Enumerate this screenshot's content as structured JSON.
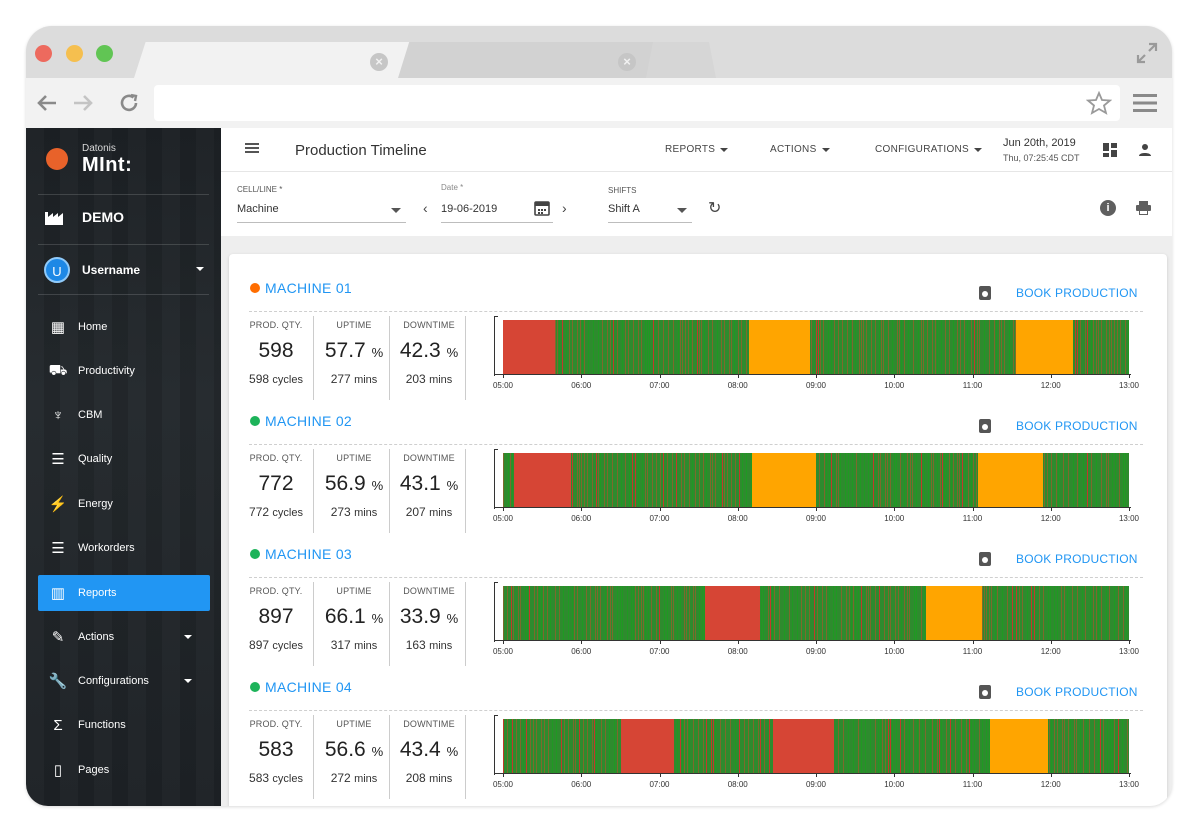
{
  "browser": {
    "traffic_colors": [
      "#ed6a5e",
      "#f5bf4f",
      "#61c554"
    ],
    "tab_close_glyph": "×"
  },
  "sidebar": {
    "logo_sub": "Datonis",
    "logo_main": "MInt:",
    "demo_label": "DEMO",
    "user": {
      "initial": "U",
      "name": "Username"
    },
    "items": [
      {
        "label": "Home",
        "icon": "grid-icon",
        "glyph": "▦"
      },
      {
        "label": "Productivity",
        "icon": "cart-icon",
        "glyph": "⛟"
      },
      {
        "label": "CBM",
        "icon": "stethoscope-icon",
        "glyph": "♆"
      },
      {
        "label": "Quality",
        "icon": "checklist-icon",
        "glyph": "☰"
      },
      {
        "label": "Energy",
        "icon": "bolt-icon",
        "glyph": "⚡"
      },
      {
        "label": "Workorders",
        "icon": "list-icon",
        "glyph": "☰"
      },
      {
        "label": "Reports",
        "icon": "bar-chart-icon",
        "glyph": "▥",
        "active": true
      },
      {
        "label": "Actions",
        "icon": "pencil-icon",
        "glyph": "✎",
        "has_submenu": true
      },
      {
        "label": "Configurations",
        "icon": "wrench-icon",
        "glyph": "🔧",
        "has_submenu": true
      },
      {
        "label": "Functions",
        "icon": "sigma-icon",
        "glyph": "Σ"
      },
      {
        "label": "Pages",
        "icon": "page-icon",
        "glyph": "▯"
      }
    ]
  },
  "header": {
    "title": "Production Timeline",
    "menus": [
      "REPORTS",
      "ACTIONS",
      "CONFIGURATIONS"
    ],
    "date_main": "Jun 20th, 2019",
    "date_sub": "Thu, 07:25:45 CDT"
  },
  "filters": {
    "cell_label": "CELL/LINE *",
    "cell_value": "Machine",
    "date_label": "Date *",
    "date_value": "19-06-2019",
    "shifts_label": "SHIFTS",
    "shifts_value": "Shift A",
    "prev_glyph": "‹",
    "next_glyph": "›",
    "refresh_glyph": "↻",
    "info_glyph": "i",
    "print_glyph": "⎙"
  },
  "colors": {
    "accent": "#2196f3",
    "running": "#2e8b2e",
    "stopped": "#d64535",
    "idle": "#ffa500",
    "status_orange": "#ff6d00",
    "status_green": "#1db35a"
  },
  "labels": {
    "prod_qty": "PROD. QTY.",
    "uptime": "UPTIME",
    "downtime": "DOWNTIME",
    "book": "BOOK PRODUCTION",
    "percent": "%",
    "cycles": "cycles",
    "mins": "mins"
  },
  "timeline_ticks": [
    "05:00",
    "06:00",
    "07:00",
    "08:00",
    "09:00",
    "10:00",
    "11:00",
    "12:00",
    "13:00"
  ],
  "machines": [
    {
      "name": "MACHINE 01",
      "status_color": "#ff6d00",
      "prod_qty": "598",
      "cycles": "598",
      "uptime": "57.7",
      "uptime_mins": "277",
      "downtime": "42.3",
      "downtime_mins": "203",
      "segments": [
        {
          "start": 0,
          "end": 0.083,
          "state": "stopped"
        },
        {
          "start": 0.393,
          "end": 0.49,
          "state": "idle"
        },
        {
          "start": 0.82,
          "end": 0.91,
          "state": "idle"
        }
      ]
    },
    {
      "name": "MACHINE 02",
      "status_color": "#1db35a",
      "prod_qty": "772",
      "cycles": "772",
      "uptime": "56.9",
      "uptime_mins": "273",
      "downtime": "43.1",
      "downtime_mins": "207",
      "segments": [
        {
          "start": 0.017,
          "end": 0.108,
          "state": "stopped"
        },
        {
          "start": 0.398,
          "end": 0.5,
          "state": "idle"
        },
        {
          "start": 0.758,
          "end": 0.862,
          "state": "idle"
        }
      ]
    },
    {
      "name": "MACHINE 03",
      "status_color": "#1db35a",
      "prod_qty": "897",
      "cycles": "897",
      "uptime": "66.1",
      "uptime_mins": "317",
      "downtime": "33.9",
      "downtime_mins": "163",
      "segments": [
        {
          "start": 0.322,
          "end": 0.41,
          "state": "stopped"
        },
        {
          "start": 0.676,
          "end": 0.765,
          "state": "idle"
        }
      ]
    },
    {
      "name": "MACHINE 04",
      "status_color": "#1db35a",
      "prod_qty": "583",
      "cycles": "583",
      "uptime": "56.6",
      "uptime_mins": "272",
      "downtime": "43.4",
      "downtime_mins": "208",
      "segments": [
        {
          "start": 0.188,
          "end": 0.273,
          "state": "stopped"
        },
        {
          "start": 0.432,
          "end": 0.528,
          "state": "stopped"
        },
        {
          "start": 0.778,
          "end": 0.87,
          "state": "idle"
        }
      ]
    }
  ]
}
